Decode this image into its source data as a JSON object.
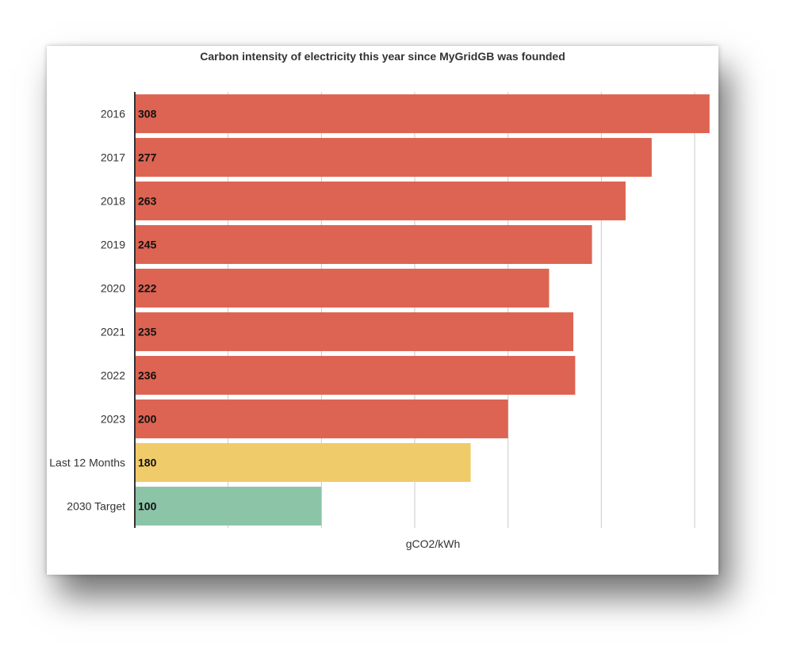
{
  "chart_data": {
    "type": "bar",
    "orientation": "horizontal",
    "title": "Carbon intensity of electricity this year since MyGridGB was founded",
    "xlabel": "gCO2/kWh",
    "ylabel": "",
    "categories": [
      "2016",
      "2017",
      "2018",
      "2019",
      "2020",
      "2021",
      "2022",
      "2023",
      "Last 12 Months",
      "2030 Target"
    ],
    "values": [
      308,
      277,
      263,
      245,
      222,
      235,
      236,
      200,
      180,
      100
    ],
    "colors": [
      "#dd6452",
      "#dd6452",
      "#dd6452",
      "#dd6452",
      "#dd6452",
      "#dd6452",
      "#dd6452",
      "#dd6452",
      "#f0cb69",
      "#8cc4a8"
    ],
    "xlim": [
      0,
      300
    ],
    "grid": true,
    "legend": "none"
  }
}
